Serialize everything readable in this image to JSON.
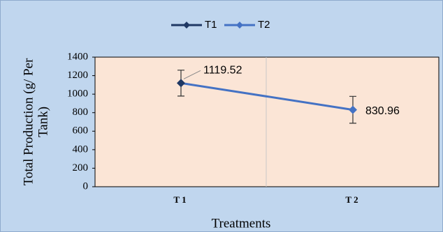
{
  "chart_data": {
    "type": "line",
    "legend": [
      {
        "name": "T1",
        "color": "#1f3864"
      },
      {
        "name": "T2",
        "color": "#4472c4"
      }
    ],
    "categories": [
      "T1",
      "T2"
    ],
    "series": [
      {
        "color": "#4472c4",
        "values": [
          1119.52,
          830.96
        ],
        "errors": [
          140,
          145
        ]
      }
    ],
    "x_label": "Treatments",
    "y_label_lines": [
      "Total Production (g/ Per",
      "Tank)"
    ],
    "ylim": [
      0,
      1400
    ],
    "yticks": [
      0,
      200,
      400,
      600,
      800,
      1000,
      1200,
      1400
    ]
  }
}
